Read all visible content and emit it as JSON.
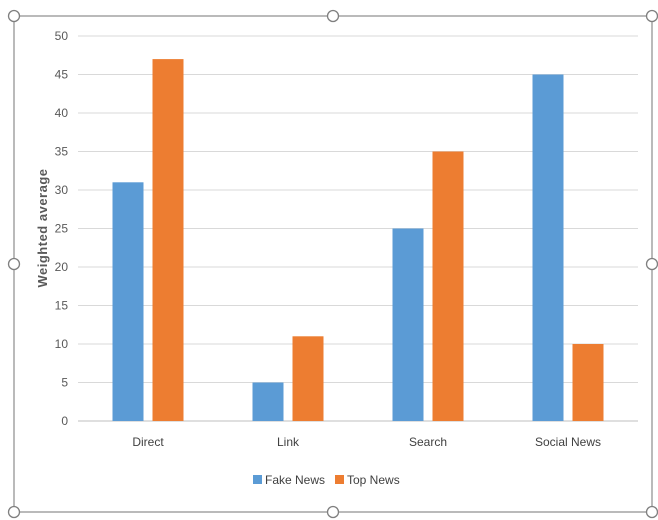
{
  "chart_data": {
    "type": "bar",
    "categories": [
      "Direct",
      "Link",
      "Search",
      "Social News"
    ],
    "series": [
      {
        "name": "Fake News",
        "values": [
          31,
          5,
          25,
          45
        ],
        "color": "#5b9bd5"
      },
      {
        "name": "Top News",
        "values": [
          47,
          11,
          35,
          10
        ],
        "color": "#ed7d31"
      }
    ],
    "title": "",
    "xlabel": "",
    "ylabel": "Weighted average",
    "ylim": [
      0,
      50
    ],
    "yticks": [
      0,
      5,
      10,
      15,
      20,
      25,
      30,
      35,
      40,
      45,
      50
    ],
    "grid": true,
    "legend_position": "bottom"
  },
  "frame": {
    "selected": true,
    "border_color": "#8c8c8c",
    "handle_icon": "resize-handle-icon"
  }
}
